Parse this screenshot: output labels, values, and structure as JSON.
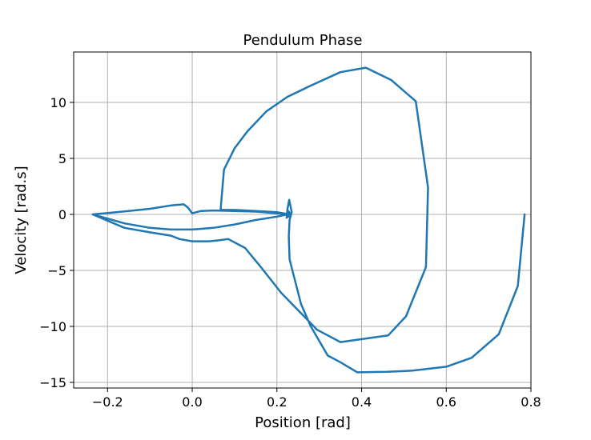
{
  "chart_data": {
    "type": "line",
    "title": "Pendulum Phase",
    "xlabel": "Position [rad]",
    "ylabel": "Velocity [rad.s]",
    "xlim": [
      -0.28,
      0.8
    ],
    "ylim": [
      -15.5,
      14.5
    ],
    "xticks": [
      -0.2,
      0.0,
      0.2,
      0.4,
      0.6,
      0.8
    ],
    "xtick_labels": [
      "−0.2",
      "0.0",
      "0.2",
      "0.4",
      "0.6",
      "0.8"
    ],
    "yticks": [
      -15,
      -10,
      -5,
      0,
      5,
      10
    ],
    "ytick_labels": [
      "−15",
      "−10",
      "−5",
      "0",
      "5",
      "10"
    ],
    "grid": true,
    "line_color": "#1f77b4",
    "series": [
      {
        "x": [
          0.785,
          0.769,
          0.724,
          0.66,
          0.6,
          0.52,
          0.46,
          0.39,
          0.35,
          0.32,
          0.28,
          0.257,
          0.24,
          0.23,
          0.228,
          0.23,
          0.235,
          0.229,
          0.225,
          0.223,
          0.226,
          0.229,
          0.233,
          0.23,
          0.227,
          0.226,
          0.229,
          0.23,
          0.2,
          0.15,
          0.1,
          0.07,
          0.067,
          0.075,
          0.1,
          0.13,
          0.175,
          0.225,
          0.28,
          0.35,
          0.41,
          0.47,
          0.528,
          0.557,
          0.552,
          0.505,
          0.463,
          0.35,
          0.295,
          0.21,
          0.16,
          0.125,
          0.085,
          0.065,
          0.04,
          0.0,
          -0.03,
          -0.05,
          -0.1,
          -0.16,
          -0.235,
          -0.15,
          -0.1,
          -0.05,
          -0.02,
          -0.01,
          0.0,
          0.02,
          0.05,
          0.1,
          0.15,
          0.2,
          0.225,
          0.2,
          0.15,
          0.1,
          0.05,
          0.0,
          -0.05,
          -0.1,
          -0.16,
          -0.235
        ],
        "y": [
          0.0,
          -6.4,
          -10.7,
          -12.8,
          -13.6,
          -13.95,
          -14.05,
          -14.1,
          -13.2,
          -12.6,
          -10.0,
          -8.0,
          -5.5,
          -4.0,
          -2.0,
          -0.5,
          0.2,
          1.3,
          0.5,
          -0.3,
          -0.2,
          0.2,
          0.0,
          -0.1,
          0.3,
          0.0,
          -0.2,
          0.0,
          0.2,
          0.3,
          0.4,
          0.4,
          0.45,
          4.0,
          5.9,
          7.4,
          9.2,
          10.5,
          11.5,
          12.7,
          13.1,
          12.0,
          10.1,
          2.4,
          -4.7,
          -9.1,
          -10.8,
          -11.4,
          -10.3,
          -7.0,
          -4.6,
          -3.0,
          -2.2,
          -2.3,
          -2.4,
          -2.4,
          -2.2,
          -1.9,
          -1.6,
          -1.2,
          0.0,
          0.3,
          0.5,
          0.8,
          0.9,
          0.6,
          0.1,
          0.3,
          0.35,
          0.3,
          0.25,
          0.1,
          0.0,
          -0.2,
          -0.5,
          -0.9,
          -1.2,
          -1.35,
          -1.35,
          -1.2,
          -0.8,
          0.0
        ]
      }
    ]
  }
}
